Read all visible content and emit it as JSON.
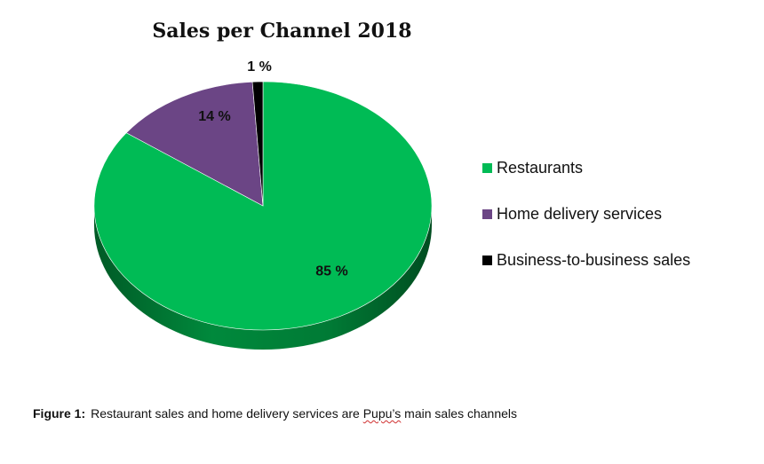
{
  "chart_data": {
    "type": "pie",
    "title": "Sales per Channel 2018",
    "slices": [
      {
        "label": "Restaurants",
        "value": 85,
        "value_label": "85 %",
        "color": "#00bb55"
      },
      {
        "label": "Home delivery services",
        "value": 14,
        "value_label": "14 %",
        "color": "#6b4585"
      },
      {
        "label": "Business-to-business sales",
        "value": 1,
        "value_label": "1 %",
        "color": "#000000"
      }
    ],
    "style": "3d",
    "legend_position": "right"
  },
  "caption": {
    "prefix": "Figure 1:",
    "text_before": "Restaurant sales and home delivery services are ",
    "flagged_word": "Pupu’s",
    "text_after": " main sales channels"
  }
}
